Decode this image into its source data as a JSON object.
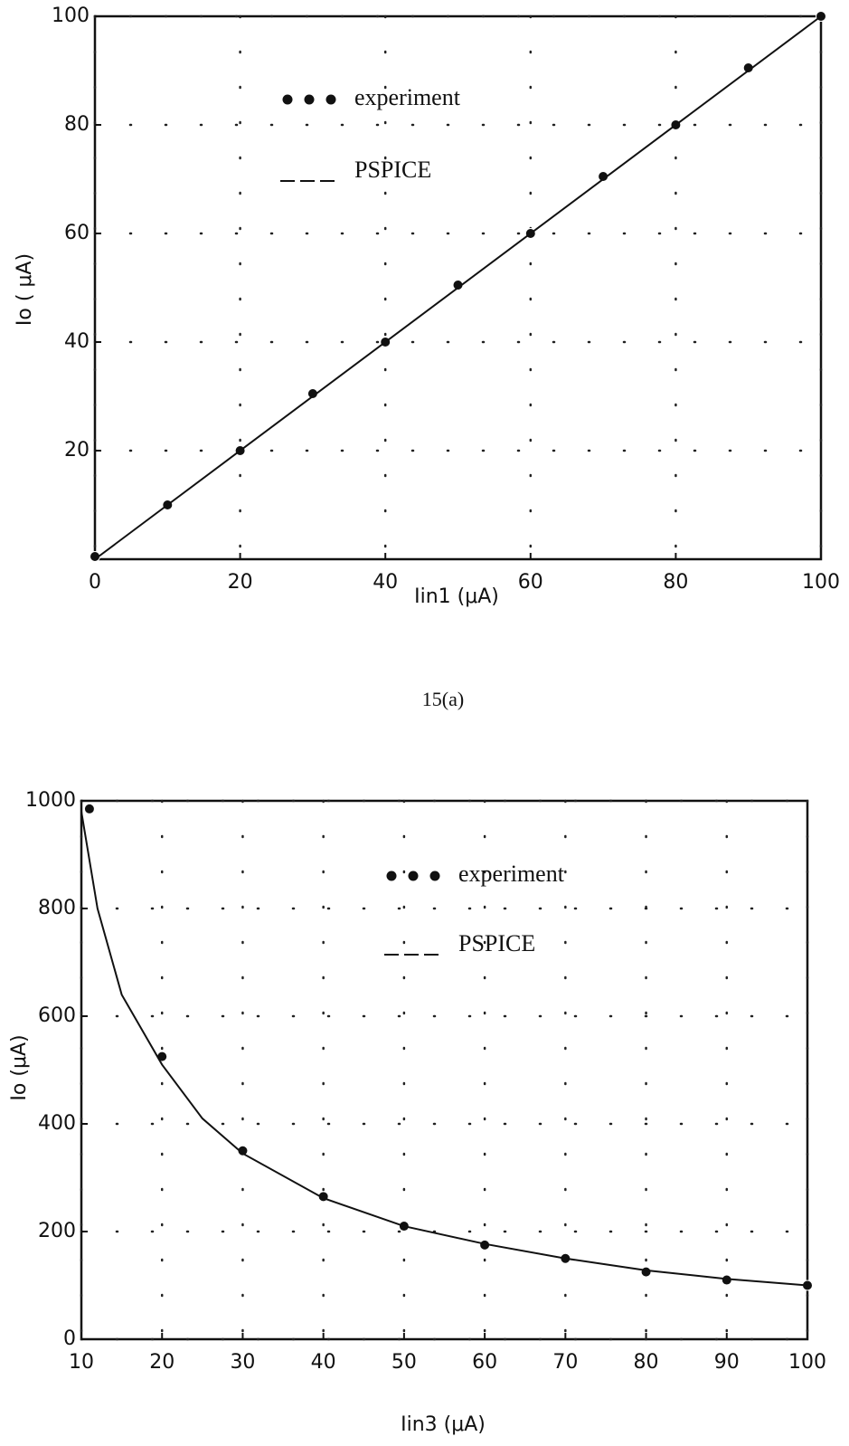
{
  "chart_data": [
    {
      "type": "line",
      "caption": "15(a)",
      "xlabel": "Iin1 (μA)",
      "ylabel": "Io ( μA)",
      "xlim": [
        0,
        100
      ],
      "ylim": [
        0,
        100
      ],
      "xticks": [
        0,
        20,
        40,
        60,
        80,
        100
      ],
      "yticks": [
        20,
        40,
        60,
        80,
        100
      ],
      "grid": true,
      "series": [
        {
          "name": "experiment",
          "color": "#111111",
          "mode": "markers",
          "x": [
            0,
            10,
            20,
            30,
            40,
            50,
            60,
            70,
            80,
            90,
            100
          ],
          "values": [
            0.5,
            10,
            20,
            30.5,
            40,
            50.5,
            60,
            70.5,
            80,
            90.5,
            100
          ]
        },
        {
          "name": "PSPICE",
          "color": "#111111",
          "mode": "lines",
          "x": [
            0,
            100
          ],
          "values": [
            0,
            100
          ]
        }
      ]
    },
    {
      "type": "line",
      "xlabel": "Iin3 (μA)",
      "ylabel": "Io (μA)",
      "xlim": [
        10,
        100
      ],
      "ylim": [
        0,
        1000
      ],
      "xticks": [
        10,
        20,
        30,
        40,
        50,
        60,
        70,
        80,
        90,
        100
      ],
      "yticks": [
        0,
        200,
        400,
        600,
        800,
        1000
      ],
      "grid": true,
      "series": [
        {
          "name": "experiment",
          "color": "#111111",
          "mode": "markers",
          "x": [
            11,
            20,
            30,
            40,
            50,
            60,
            70,
            80,
            90,
            100
          ],
          "values": [
            985,
            525,
            350,
            265,
            210,
            175,
            150,
            125,
            110,
            100
          ]
        },
        {
          "name": "PSPICE",
          "color": "#111111",
          "mode": "lines",
          "x": [
            10,
            12,
            15,
            20,
            25,
            30,
            40,
            50,
            60,
            70,
            80,
            90,
            100
          ],
          "values": [
            980,
            800,
            640,
            510,
            410,
            345,
            262,
            210,
            177,
            150,
            128,
            112,
            100
          ]
        }
      ]
    }
  ]
}
